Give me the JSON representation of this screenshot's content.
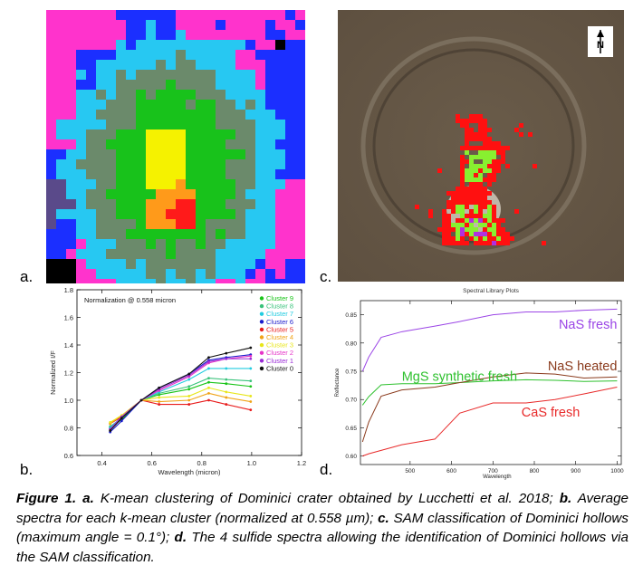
{
  "panel_labels": {
    "a": "a.",
    "b": "b.",
    "c": "c.",
    "d": "d."
  },
  "panel_a": {
    "colors": {
      "magenta": "#ff33cc",
      "blue": "#1b2fff",
      "cyan": "#27c8f2",
      "gray": "#6b8a6b",
      "green": "#18c21b",
      "yellow": "#f5f200",
      "orange": "#ff9a1a",
      "red": "#ff1a1a",
      "purple": "#5a4a8a",
      "black": "#000000"
    }
  },
  "panel_b": {
    "chart_data": {
      "type": "line",
      "annotation": "Normalization @ 0.558 micron",
      "xlabel": "Wavelength (micron)",
      "ylabel": "Normalized I/F",
      "xlim": [
        0.3,
        1.2
      ],
      "ylim": [
        0.6,
        1.8
      ],
      "xticks": [
        "0.4",
        "0.6",
        "0.8",
        "1.0",
        "1.2"
      ],
      "yticks": [
        "0.6",
        "0.8",
        "1.0",
        "1.2",
        "1.4",
        "1.6",
        "1.8"
      ],
      "x": [
        0.433,
        0.479,
        0.558,
        0.629,
        0.749,
        0.828,
        0.898,
        0.996
      ],
      "legend_position": "top-right",
      "series": [
        {
          "name": "Cluster 9",
          "color": "#19c419",
          "values": [
            0.8,
            0.86,
            1.0,
            1.04,
            1.08,
            1.13,
            1.12,
            1.1
          ]
        },
        {
          "name": "Cluster 8",
          "color": "#38c27a",
          "values": [
            0.81,
            0.87,
            1.0,
            1.05,
            1.1,
            1.16,
            1.15,
            1.14
          ]
        },
        {
          "name": "Cluster 7",
          "color": "#22cce0",
          "values": [
            0.8,
            0.88,
            1.0,
            1.06,
            1.15,
            1.23,
            1.23,
            1.23
          ]
        },
        {
          "name": "Cluster 6",
          "color": "#1a1acc",
          "values": [
            0.77,
            0.85,
            1.0,
            1.09,
            1.19,
            1.29,
            1.31,
            1.33
          ]
        },
        {
          "name": "Cluster 5",
          "color": "#e81c1c",
          "values": [
            0.83,
            0.88,
            1.0,
            0.97,
            0.97,
            1.0,
            0.97,
            0.93
          ]
        },
        {
          "name": "Cluster 4",
          "color": "#f0a418",
          "values": [
            0.83,
            0.89,
            1.0,
            0.99,
            1.0,
            1.05,
            1.02,
            0.99
          ]
        },
        {
          "name": "Cluster 3",
          "color": "#e8e61a",
          "values": [
            0.84,
            0.89,
            1.0,
            1.02,
            1.03,
            1.09,
            1.06,
            1.03
          ]
        },
        {
          "name": "Cluster 2",
          "color": "#e634c8",
          "values": [
            0.79,
            0.88,
            1.0,
            1.07,
            1.17,
            1.27,
            1.3,
            1.32
          ]
        },
        {
          "name": "Cluster 1",
          "color": "#9a2ad6",
          "values": [
            0.79,
            0.88,
            1.0,
            1.08,
            1.18,
            1.28,
            1.3,
            1.3
          ]
        },
        {
          "name": "Cluster 0",
          "color": "#111111",
          "values": [
            0.78,
            0.87,
            1.0,
            1.09,
            1.19,
            1.31,
            1.34,
            1.38
          ]
        }
      ]
    }
  },
  "panel_c": {
    "north_symbol": "N",
    "colors": {
      "background": "#5e5040",
      "red": "#ff1010",
      "green": "#88f030",
      "purple": "#b030e0"
    }
  },
  "panel_d": {
    "chart_data": {
      "type": "line",
      "title": "Spectral Library Plots",
      "xlabel": "Wavelength",
      "ylabel": "Reflectance",
      "xlim": [
        380,
        1010
      ],
      "ylim": [
        0.585,
        0.875
      ],
      "xticks": [
        "500",
        "600",
        "700",
        "800",
        "900",
        "1000"
      ],
      "yticks": [
        "0.60",
        "0.65",
        "0.70",
        "0.75",
        "0.80",
        "0.85"
      ],
      "series": [
        {
          "name": "NaS fresh",
          "color": "#9b45e6",
          "x": [
            385,
            400,
            430,
            480,
            560,
            620,
            700,
            780,
            850,
            920,
            1000
          ],
          "values": [
            0.75,
            0.775,
            0.81,
            0.82,
            0.83,
            0.838,
            0.85,
            0.855,
            0.855,
            0.858,
            0.86
          ]
        },
        {
          "name": "MgS synthetic fresh",
          "color": "#2fc12f",
          "x": [
            385,
            400,
            430,
            480,
            560,
            620,
            700,
            780,
            850,
            920,
            1000
          ],
          "values": [
            0.69,
            0.705,
            0.726,
            0.728,
            0.728,
            0.73,
            0.733,
            0.735,
            0.734,
            0.732,
            0.733
          ]
        },
        {
          "name": "NaS heated",
          "color": "#8a3a1c",
          "x": [
            385,
            400,
            430,
            480,
            560,
            620,
            700,
            780,
            850,
            920,
            1000
          ],
          "values": [
            0.625,
            0.66,
            0.706,
            0.717,
            0.722,
            0.73,
            0.74,
            0.747,
            0.745,
            0.738,
            0.74
          ]
        },
        {
          "name": "CaS fresh",
          "color": "#e82a2a",
          "x": [
            385,
            400,
            430,
            480,
            560,
            620,
            700,
            780,
            850,
            920,
            1000
          ],
          "values": [
            0.6,
            0.604,
            0.61,
            0.62,
            0.63,
            0.676,
            0.694,
            0.694,
            0.7,
            0.71,
            0.722
          ]
        }
      ]
    }
  },
  "caption": {
    "fig": "Figure 1.",
    "a_label": "a.",
    "a_text": " K-mean clustering of Dominici crater obtained by Lucchetti et al. 2018; ",
    "b_label": "b.",
    "b_text": " Average spectra for each k-mean cluster (normalized at 0.558 µm); ",
    "c_label": "c.",
    "c_text": " SAM classification of Dominici hollows (maximum angle = 0.1°); ",
    "d_label": "d.",
    "d_text": " The 4 sulfide spectra allowing the identification of Dominici hollows via the SAM classification."
  }
}
